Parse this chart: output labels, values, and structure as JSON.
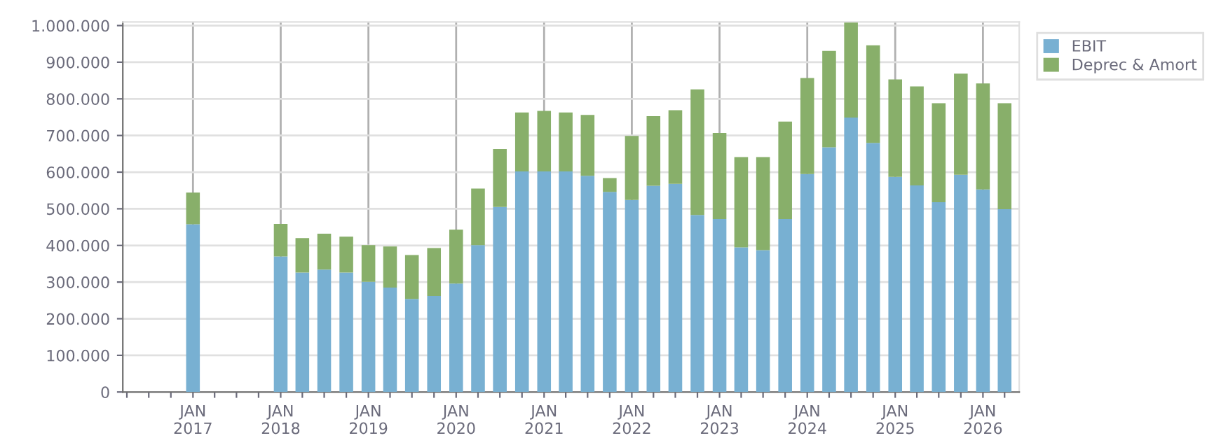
{
  "chart_data": {
    "type": "bar",
    "stacked": true,
    "x": [
      "2017-01",
      "2018-01",
      "2018-04",
      "2018-07",
      "2018-10",
      "2019-01",
      "2019-04",
      "2019-07",
      "2019-10",
      "2020-01",
      "2020-04",
      "2020-07",
      "2020-10",
      "2021-01",
      "2021-04",
      "2021-07",
      "2021-10",
      "2022-01",
      "2022-04",
      "2022-07",
      "2022-10",
      "2023-01",
      "2023-04",
      "2023-07",
      "2023-10",
      "2024-01",
      "2024-04",
      "2024-07",
      "2024-10",
      "2025-01",
      "2025-04",
      "2025-07",
      "2025-10",
      "2026-01",
      "2026-04"
    ],
    "series": [
      {
        "name": "EBIT",
        "color": "#78b0d2",
        "values": [
          458000,
          370000,
          326000,
          334000,
          326000,
          301000,
          285000,
          254000,
          262000,
          296000,
          401000,
          505000,
          602000,
          602000,
          602000,
          590000,
          546000,
          524000,
          563000,
          568000,
          483000,
          472000,
          395000,
          387000,
          472000,
          595000,
          668000,
          749000,
          680000,
          587000,
          564000,
          518000,
          593000,
          553000,
          499000
        ]
      },
      {
        "name": "Deprec & Amort",
        "color": "#88af6a",
        "values": [
          86000,
          89000,
          94000,
          98000,
          98000,
          100000,
          112000,
          120000,
          131000,
          147000,
          154000,
          158000,
          161000,
          165000,
          161000,
          166000,
          38000,
          175000,
          190000,
          201000,
          343000,
          235000,
          246000,
          254000,
          266000,
          262000,
          263000,
          259000,
          266000,
          266000,
          270000,
          270000,
          276000,
          289000,
          289000
        ]
      }
    ],
    "xlim": [
      "2016-03-15",
      "2026-06-01"
    ],
    "xticks": [
      {
        "value": "2016-04",
        "label": null
      },
      {
        "value": "2016-07",
        "label": null
      },
      {
        "value": "2016-10",
        "label": null
      },
      {
        "value": "2017-01",
        "label": "JAN\n2017"
      },
      {
        "value": "2017-04",
        "label": null
      },
      {
        "value": "2017-07",
        "label": null
      },
      {
        "value": "2017-10",
        "label": null
      },
      {
        "value": "2018-01",
        "label": "JAN\n2018"
      },
      {
        "value": "2018-04",
        "label": null
      },
      {
        "value": "2018-07",
        "label": null
      },
      {
        "value": "2018-10",
        "label": null
      },
      {
        "value": "2019-01",
        "label": "JAN\n2019"
      },
      {
        "value": "2019-04",
        "label": null
      },
      {
        "value": "2019-07",
        "label": null
      },
      {
        "value": "2019-10",
        "label": null
      },
      {
        "value": "2020-01",
        "label": "JAN\n2020"
      },
      {
        "value": "2020-04",
        "label": null
      },
      {
        "value": "2020-07",
        "label": null
      },
      {
        "value": "2020-10",
        "label": null
      },
      {
        "value": "2021-01",
        "label": "JAN\n2021"
      },
      {
        "value": "2021-04",
        "label": null
      },
      {
        "value": "2021-07",
        "label": null
      },
      {
        "value": "2021-10",
        "label": null
      },
      {
        "value": "2022-01",
        "label": "JAN\n2022"
      },
      {
        "value": "2022-04",
        "label": null
      },
      {
        "value": "2022-07",
        "label": null
      },
      {
        "value": "2022-10",
        "label": null
      },
      {
        "value": "2023-01",
        "label": "JAN\n2023"
      },
      {
        "value": "2023-04",
        "label": null
      },
      {
        "value": "2023-07",
        "label": null
      },
      {
        "value": "2023-10",
        "label": null
      },
      {
        "value": "2024-01",
        "label": "JAN\n2024"
      },
      {
        "value": "2024-04",
        "label": null
      },
      {
        "value": "2024-07",
        "label": null
      },
      {
        "value": "2024-10",
        "label": null
      },
      {
        "value": "2025-01",
        "label": "JAN\n2025"
      },
      {
        "value": "2025-04",
        "label": null
      },
      {
        "value": "2025-07",
        "label": null
      },
      {
        "value": "2025-10",
        "label": null
      },
      {
        "value": "2026-01",
        "label": "JAN\n2026"
      },
      {
        "value": "2026-04",
        "label": null
      }
    ],
    "ylim": [
      0,
      1010000
    ],
    "yticks": [
      0,
      {
        "value": 100000,
        "label": "100.000"
      },
      {
        "value": 200000,
        "label": "200.000"
      },
      {
        "value": 300000,
        "label": "300.000"
      },
      {
        "value": 400000,
        "label": "400.000"
      },
      {
        "value": 500000,
        "label": "500.000"
      },
      {
        "value": 600000,
        "label": "600.000"
      },
      {
        "value": 700000,
        "label": "700.000"
      },
      {
        "value": 800000,
        "label": "800.000"
      },
      {
        "value": 900000,
        "label": "900.000"
      },
      {
        "value": 1000000,
        "label": "1.000.000"
      }
    ],
    "grid": true,
    "legend": "top right"
  }
}
